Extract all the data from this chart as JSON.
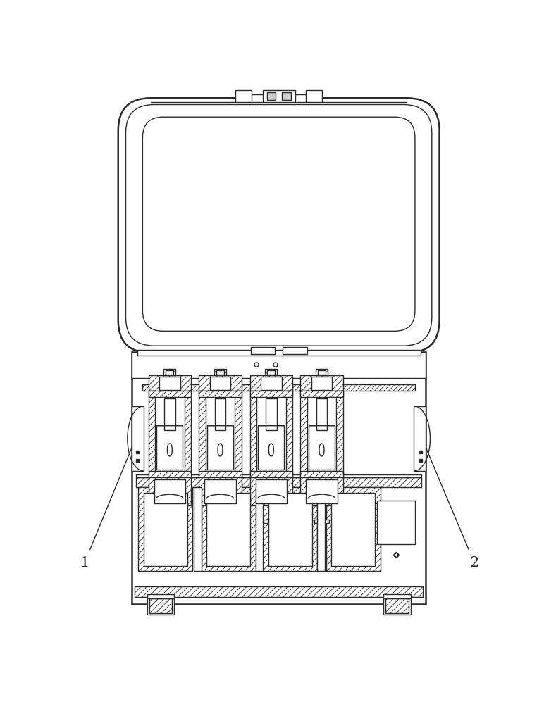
{
  "bg_color": "#ffffff",
  "lc": "#2a2a2a",
  "lw": 1.0,
  "lw2": 1.8,
  "hatch_color": "#555555",
  "label1": "1",
  "label2": "2"
}
